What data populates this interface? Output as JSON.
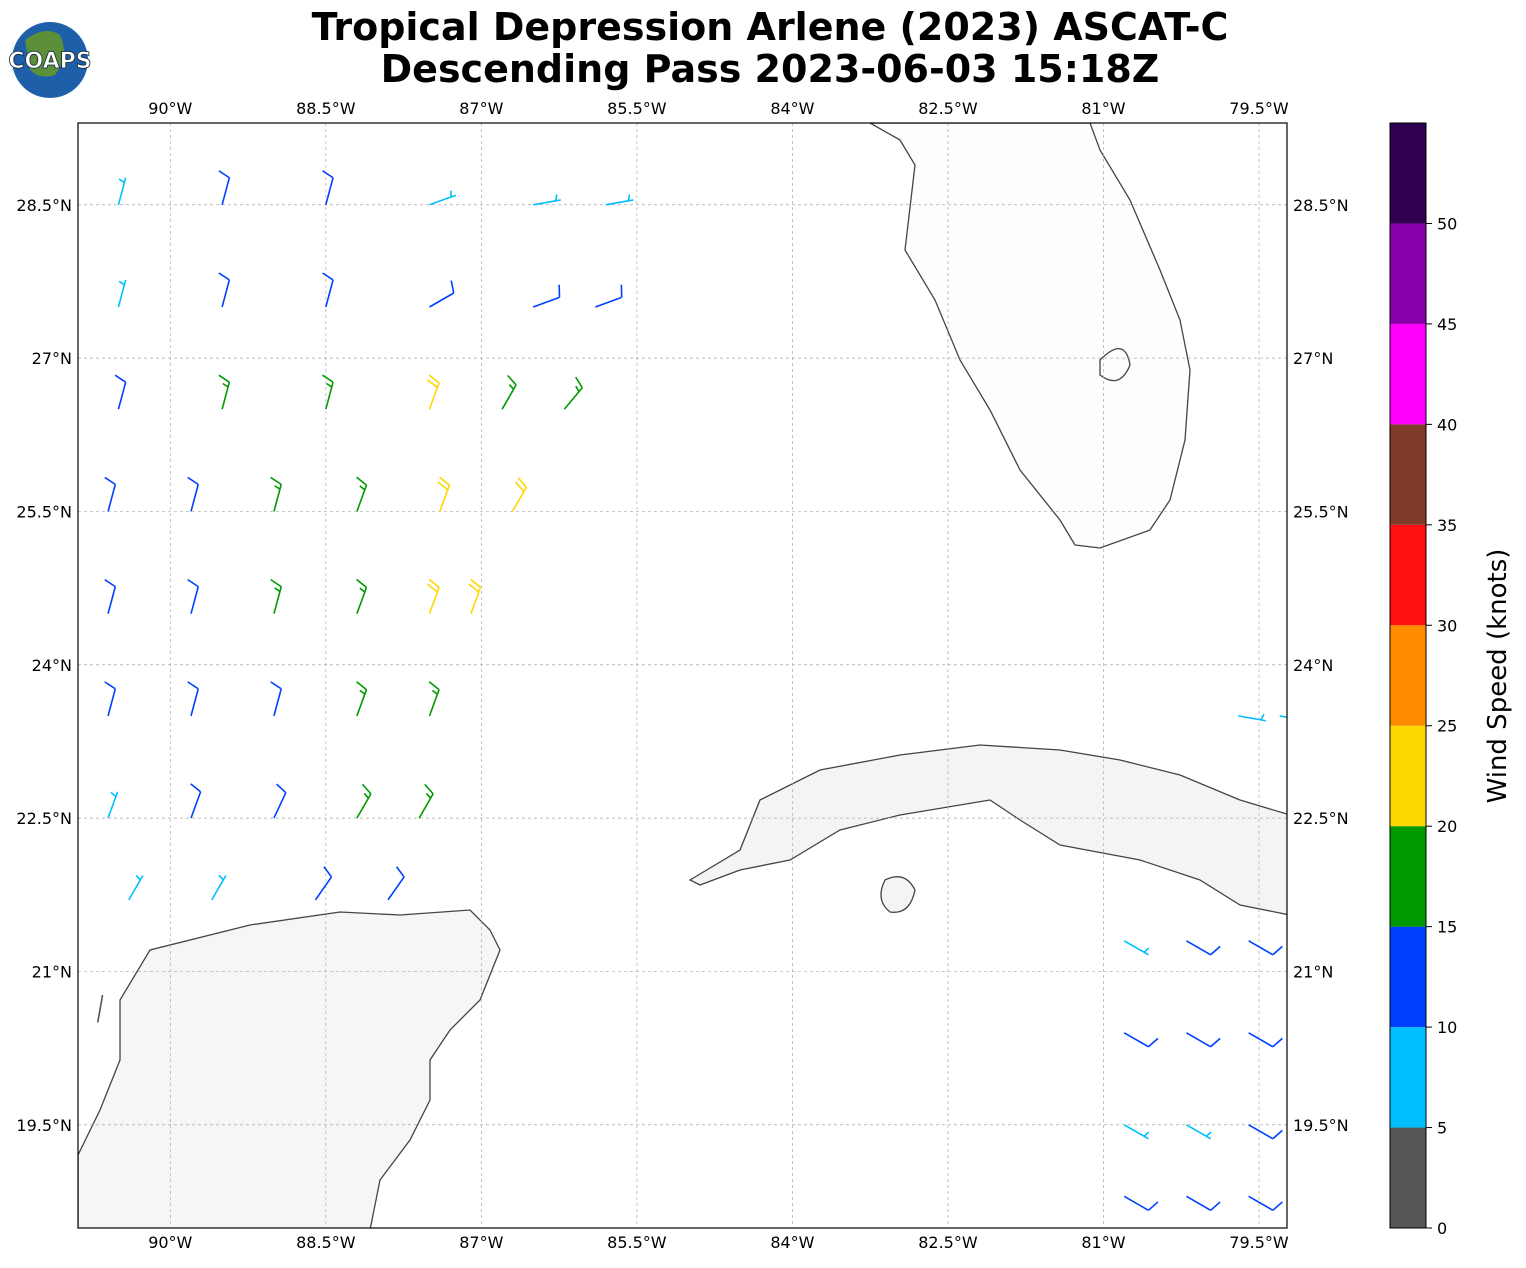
{
  "header": {
    "title": "Tropical Depression Arlene (2023) ASCAT-C",
    "subtitle": "Descending Pass 2023-06-03 15:18Z",
    "logo": "COAPS"
  },
  "map": {
    "xlim": [
      -90.89,
      -79.23
    ],
    "ylim": [
      18.49,
      29.3
    ],
    "grid": true,
    "xticks": [
      {
        "value": -90,
        "label": "90°W"
      },
      {
        "value": -88.5,
        "label": "88.5°W"
      },
      {
        "value": -87,
        "label": "87°W"
      },
      {
        "value": -85.5,
        "label": "85.5°W"
      },
      {
        "value": -84,
        "label": "84°W"
      },
      {
        "value": -82.5,
        "label": "82.5°W"
      },
      {
        "value": -81,
        "label": "81°W"
      },
      {
        "value": -79.5,
        "label": "79.5°W"
      }
    ],
    "yticks": [
      {
        "value": 19.5,
        "label": "19.5°N"
      },
      {
        "value": 21,
        "label": "21°N"
      },
      {
        "value": 22.5,
        "label": "22.5°N"
      },
      {
        "value": 24,
        "label": "24°N"
      },
      {
        "value": 25.5,
        "label": "25.5°N"
      },
      {
        "value": 27,
        "label": "27°N"
      },
      {
        "value": 28.5,
        "label": "28.5°N"
      }
    ]
  },
  "colorbar": {
    "label": "Wind Speed (knots)",
    "lim": [
      0,
      55
    ],
    "bounds": [
      0,
      5,
      10,
      15,
      20,
      25,
      30,
      35,
      40,
      45,
      50,
      55
    ],
    "colors": [
      "#555555",
      "#00bfff",
      "#0040ff",
      "#009900",
      "#ffd700",
      "#ff8c00",
      "#ff1010",
      "#7f3a28",
      "#ff00ff",
      "#8800aa",
      "#2e004f"
    ],
    "ticks": [
      0,
      5,
      10,
      15,
      20,
      25,
      30,
      35,
      40,
      45,
      50
    ]
  },
  "barbs": {
    "lon": [
      -90.5,
      -89.5,
      -88.5,
      -87.5,
      -86.5,
      -85.8,
      -90.5,
      -89.5,
      -88.5,
      -87.5,
      -86.5,
      -85.9,
      -90.5,
      -89.5,
      -88.5,
      -87.5,
      -86.8,
      -86.2,
      -90.6,
      -89.8,
      -89.0,
      -88.2,
      -87.4,
      -86.7,
      -90.6,
      -89.8,
      -89.0,
      -88.2,
      -87.5,
      -87.1,
      -90.6,
      -89.8,
      -89.0,
      -88.2,
      -87.5,
      -90.6,
      -89.8,
      -89.0,
      -88.2,
      -87.6,
      -90.4,
      -89.6,
      -88.6,
      -87.9,
      -90.7,
      -79.7,
      -79.3,
      -80.8,
      -80.2,
      -79.6,
      -80.8,
      -80.2,
      -79.6,
      -80.8,
      -80.2,
      -79.6,
      -80.8,
      -80.2,
      -79.6
    ],
    "lat": [
      28.5,
      28.5,
      28.5,
      28.5,
      28.5,
      28.5,
      27.5,
      27.5,
      27.5,
      27.5,
      27.5,
      27.5,
      26.5,
      26.5,
      26.5,
      26.5,
      26.5,
      26.5,
      25.5,
      25.5,
      25.5,
      25.5,
      25.5,
      25.5,
      24.5,
      24.5,
      24.5,
      24.5,
      24.5,
      24.5,
      23.5,
      23.5,
      23.5,
      23.5,
      23.5,
      22.5,
      22.5,
      22.5,
      22.5,
      22.5,
      21.7,
      21.7,
      21.7,
      21.7,
      20.5,
      23.5,
      23.5,
      21.3,
      21.3,
      21.3,
      20.4,
      20.4,
      20.4,
      19.5,
      19.5,
      19.5,
      18.8,
      18.8,
      18.8
    ],
    "speed": [
      8,
      12,
      12,
      8,
      8,
      8,
      8,
      12,
      14,
      12,
      12,
      12,
      12,
      17,
      17,
      22,
      17,
      17,
      12,
      12,
      17,
      17,
      22,
      22,
      12,
      12,
      17,
      17,
      22,
      22,
      12,
      12,
      14,
      17,
      17,
      8,
      12,
      12,
      17,
      17,
      8,
      8,
      12,
      12,
      3,
      8,
      8,
      8,
      12,
      12,
      12,
      12,
      12,
      8,
      8,
      12,
      12,
      12,
      12
    ],
    "direction": [
      15,
      15,
      15,
      70,
      80,
      80,
      15,
      15,
      15,
      60,
      70,
      70,
      15,
      15,
      15,
      20,
      30,
      40,
      15,
      15,
      15,
      20,
      20,
      30,
      15,
      15,
      15,
      20,
      20,
      20,
      15,
      15,
      15,
      20,
      20,
      20,
      20,
      25,
      30,
      30,
      30,
      30,
      35,
      35,
      10,
      100,
      100,
      120,
      120,
      120,
      120,
      120,
      120,
      120,
      120,
      120,
      120,
      120,
      120
    ]
  }
}
